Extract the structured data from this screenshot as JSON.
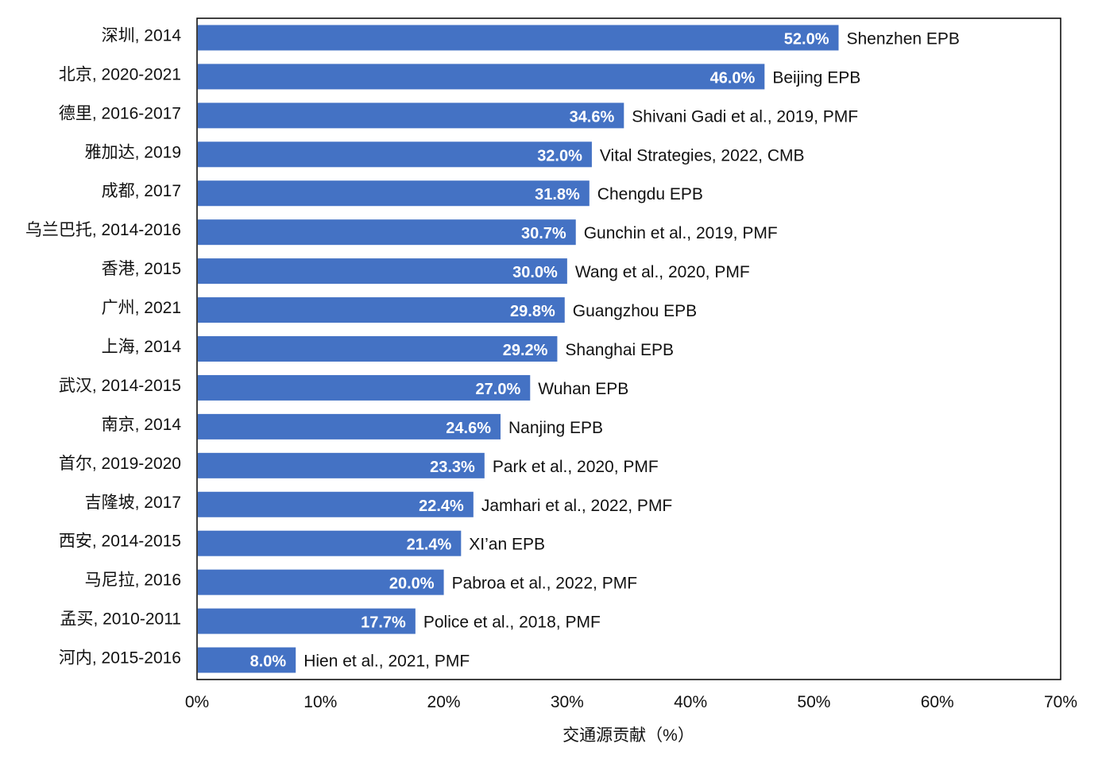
{
  "colors": {
    "bar": "#4472C4",
    "frame": "#000000",
    "text": "#111111",
    "value_text": "#ffffff"
  },
  "chart_data": {
    "type": "bar",
    "orientation": "horizontal",
    "xlabel": "交通源贡献（%）",
    "xlim": [
      0,
      70
    ],
    "xticks": [
      0,
      10,
      20,
      30,
      40,
      50,
      60,
      70
    ],
    "xtick_labels": [
      "0%",
      "10%",
      "20%",
      "30%",
      "40%",
      "50%",
      "60%",
      "70%"
    ],
    "grid": false,
    "legend": "none",
    "categories": [
      "深圳, 2014",
      "北京, 2020-2021",
      "德里, 2016-2017",
      "雅加达, 2019",
      "成都, 2017",
      "乌兰巴托, 2014-2016",
      "香港, 2015",
      "广州, 2021",
      "上海, 2014",
      "武汉, 2014-2015",
      "南京, 2014",
      "首尔, 2019-2020",
      "吉隆坡, 2017",
      "西安, 2014-2015",
      "马尼拉, 2016",
      "孟买, 2010-2011",
      "河内, 2015-2016"
    ],
    "values": [
      52.0,
      46.0,
      34.6,
      32.0,
      31.8,
      30.7,
      30.0,
      29.8,
      29.2,
      27.0,
      24.6,
      23.3,
      22.4,
      21.4,
      20.0,
      17.7,
      8.0
    ],
    "value_labels": [
      "52.0%",
      "46.0%",
      "34.6%",
      "32.0%",
      "31.8%",
      "30.7%",
      "30.0%",
      "29.8%",
      "29.2%",
      "27.0%",
      "24.6%",
      "23.3%",
      "22.4%",
      "21.4%",
      "20.0%",
      "17.7%",
      "8.0%"
    ],
    "annotations": [
      "Shenzhen EPB",
      "Beijing EPB",
      "Shivani Gadi et al., 2019, PMF",
      "Vital Strategies, 2022, CMB",
      "Chengdu EPB",
      "Gunchin et al., 2019, PMF",
      "Wang et al., 2020, PMF",
      "Guangzhou EPB",
      "Shanghai EPB",
      "Wuhan EPB",
      "Nanjing EPB",
      "Park et al., 2020, PMF",
      "Jamhari et al., 2022, PMF",
      "XI’an EPB",
      "Pabroa et al., 2022, PMF",
      "Police et al., 2018, PMF",
      "Hien et al., 2021, PMF"
    ]
  }
}
